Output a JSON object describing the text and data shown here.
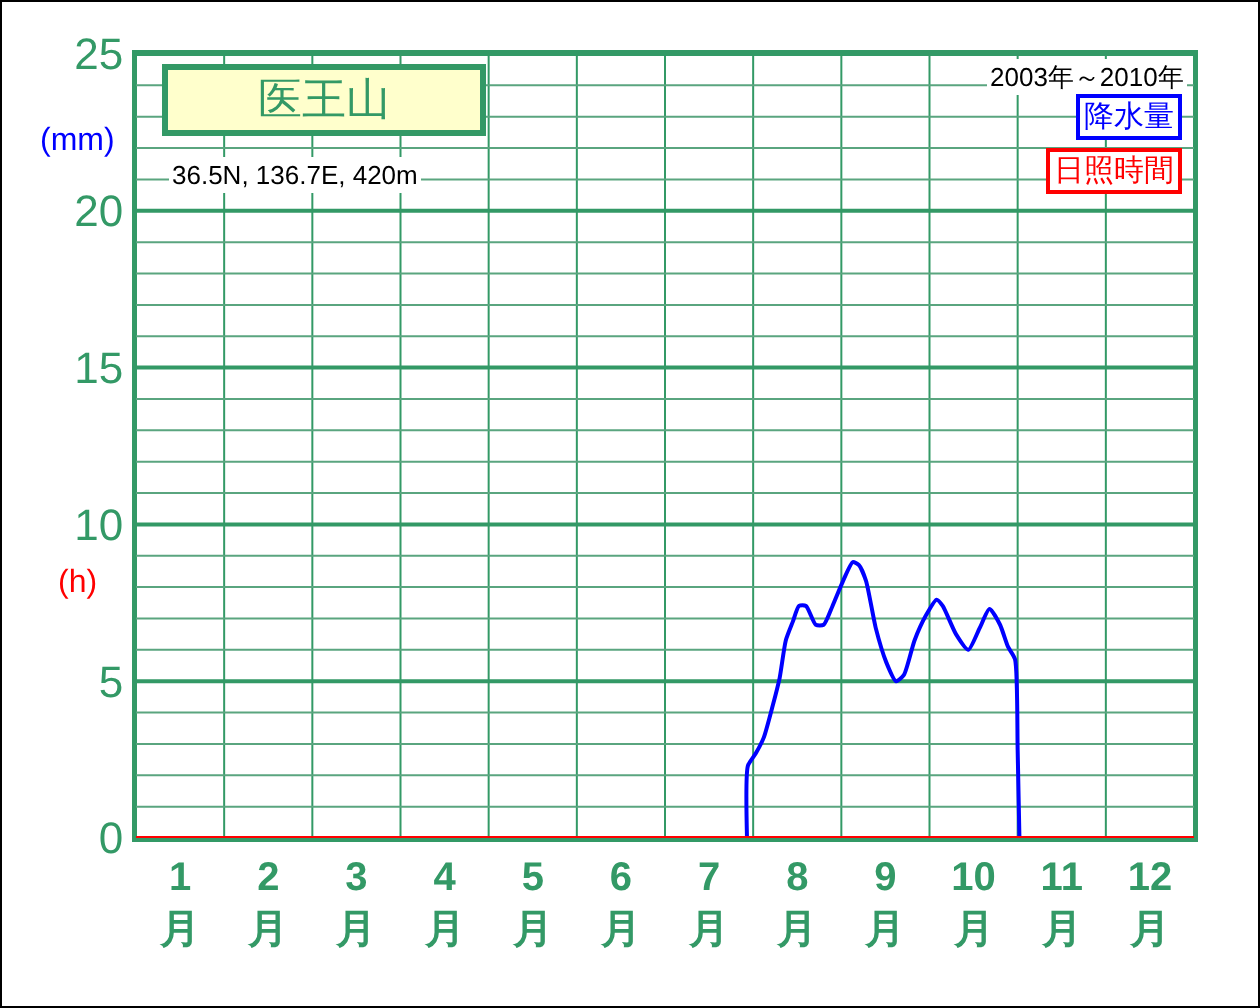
{
  "chart_data": {
    "type": "line",
    "title": "医王山",
    "subtitle": "36.5N, 136.7E, 420m",
    "annotations": [
      "2003年～2010年"
    ],
    "ylabel": "(mm)",
    "y2label": "(h)",
    "xlim": [
      0,
      12
    ],
    "xticks": [
      {
        "value": 0,
        "label": null
      },
      {
        "value": 0.5,
        "label": "1\n月"
      },
      {
        "value": 1,
        "label": null
      },
      {
        "value": 1.5,
        "label": "2\n月"
      },
      {
        "value": 2,
        "label": null
      },
      {
        "value": 2.5,
        "label": "3\n月"
      },
      {
        "value": 3,
        "label": null
      },
      {
        "value": 3.5,
        "label": "4\n月"
      },
      {
        "value": 4,
        "label": null
      },
      {
        "value": 4.5,
        "label": "5\n月"
      },
      {
        "value": 5,
        "label": null
      },
      {
        "value": 5.5,
        "label": "6\n月"
      },
      {
        "value": 6,
        "label": null
      },
      {
        "value": 6.5,
        "label": "7\n月"
      },
      {
        "value": 7,
        "label": null
      },
      {
        "value": 7.5,
        "label": "8\n月"
      },
      {
        "value": 8,
        "label": null
      },
      {
        "value": 8.5,
        "label": "9\n月"
      },
      {
        "value": 9,
        "label": null
      },
      {
        "value": 9.5,
        "label": "10\n月"
      },
      {
        "value": 10,
        "label": null
      },
      {
        "value": 10.5,
        "label": "11\n月"
      },
      {
        "value": 11,
        "label": null
      },
      {
        "value": 11.5,
        "label": "12\n月"
      },
      {
        "value": 12,
        "label": null
      }
    ],
    "ylim": [
      0,
      25
    ],
    "yticks": [
      0,
      {
        "value": 1,
        "label": null
      },
      {
        "value": 2,
        "label": null
      },
      {
        "value": 3,
        "label": null
      },
      {
        "value": 4,
        "label": null
      },
      5,
      {
        "value": 6,
        "label": null
      },
      {
        "value": 7,
        "label": null
      },
      {
        "value": 8,
        "label": null
      },
      {
        "value": 9,
        "label": null
      },
      10,
      {
        "value": 11,
        "label": null
      },
      {
        "value": 12,
        "label": null
      },
      {
        "value": 13,
        "label": null
      },
      {
        "value": 14,
        "label": null
      },
      15,
      {
        "value": 16,
        "label": null
      },
      {
        "value": 17,
        "label": null
      },
      {
        "value": 18,
        "label": null
      },
      {
        "value": 19,
        "label": null
      },
      20,
      {
        "value": 21,
        "label": null
      },
      {
        "value": 22,
        "label": null
      },
      {
        "value": 23,
        "label": null
      },
      {
        "value": 24,
        "label": null
      },
      25
    ],
    "grid": true,
    "legend": "top right",
    "marker": "none",
    "line_style": "solid",
    "series": [
      {
        "name": "降水量",
        "color": "#0000ff",
        "x": [
          6.93,
          6.94,
          7.03,
          7.12,
          7.22,
          7.3,
          7.37,
          7.45,
          7.52,
          7.6,
          7.71,
          7.8,
          7.9,
          8.02,
          8.13,
          8.2,
          8.28,
          8.39,
          8.51,
          8.62,
          8.71,
          8.83,
          8.96,
          9.08,
          9.15,
          9.3,
          9.44,
          9.57,
          9.68,
          9.8,
          9.89,
          9.97,
          10.0,
          10.02
        ],
        "values": [
          0,
          2.3,
          2.7,
          3.2,
          4.2,
          5.1,
          6.3,
          6.9,
          7.4,
          7.4,
          6.8,
          6.8,
          7.4,
          8.2,
          8.8,
          8.7,
          8.2,
          6.7,
          5.6,
          5.0,
          5.2,
          6.3,
          7.1,
          7.6,
          7.4,
          6.5,
          6.0,
          6.7,
          7.3,
          6.8,
          6.1,
          5.7,
          2.8,
          0
        ]
      },
      {
        "name": "日照時間",
        "color": "#ff0000",
        "x": [
          0,
          12
        ],
        "values": [
          0,
          0
        ]
      }
    ]
  }
}
